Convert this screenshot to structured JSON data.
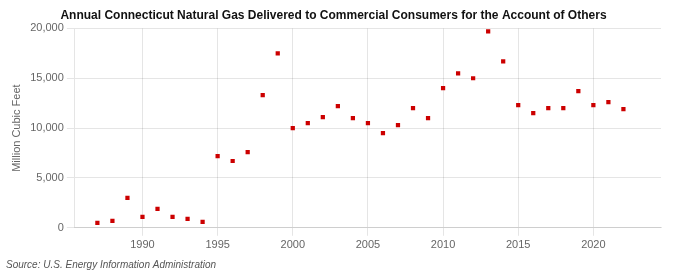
{
  "chart_data": {
    "type": "scatter",
    "title": "Annual Connecticut Natural Gas Delivered to Commercial Consumers for the Account of Others",
    "ylabel": "Million Cubic Feet",
    "annotations": [
      "Source: U.S. Energy Information Administration"
    ],
    "x": [
      1987,
      1988,
      1989,
      1990,
      1991,
      1992,
      1993,
      1994,
      1995,
      1996,
      1997,
      1998,
      1999,
      2000,
      2001,
      2002,
      2003,
      2004,
      2005,
      2006,
      2007,
      2008,
      2009,
      2010,
      2011,
      2012,
      2013,
      2014,
      2015,
      2016,
      2017,
      2018,
      2019,
      2020,
      2021,
      2022
    ],
    "values": [
      500,
      700,
      3000,
      1100,
      1900,
      1100,
      900,
      600,
      7200,
      6700,
      7600,
      13300,
      17500,
      10000,
      10500,
      11100,
      12200,
      11000,
      10500,
      9500,
      10300,
      12000,
      11000,
      14000,
      15500,
      15000,
      19700,
      16700,
      12300,
      11500,
      12000,
      12000,
      13700,
      12300,
      12600,
      11900
    ],
    "color": "#cc0000",
    "marker": "square",
    "xlim": [
      1985.5,
      2024.5
    ],
    "xticks": [
      1990,
      1995,
      2000,
      2005,
      2010,
      2015,
      2020
    ],
    "ylim": [
      0,
      20000
    ],
    "yticks": [
      0,
      {
        "value": 5000,
        "label": "5,000"
      },
      {
        "value": 10000,
        "label": "10,000"
      },
      {
        "value": 15000,
        "label": "15,000"
      },
      {
        "value": 20000,
        "label": "20,000"
      }
    ],
    "grid": true
  }
}
